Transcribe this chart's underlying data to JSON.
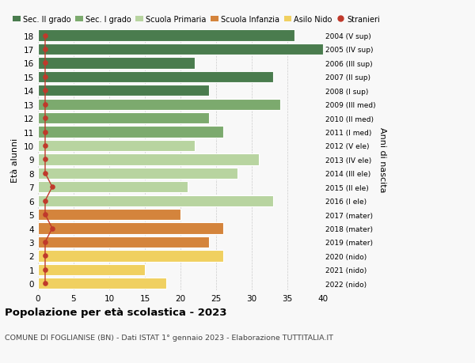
{
  "ages": [
    18,
    17,
    16,
    15,
    14,
    13,
    12,
    11,
    10,
    9,
    8,
    7,
    6,
    5,
    4,
    3,
    2,
    1,
    0
  ],
  "labels_right": [
    "2004 (V sup)",
    "2005 (IV sup)",
    "2006 (III sup)",
    "2007 (II sup)",
    "2008 (I sup)",
    "2009 (III med)",
    "2010 (II med)",
    "2011 (I med)",
    "2012 (V ele)",
    "2013 (IV ele)",
    "2014 (III ele)",
    "2015 (II ele)",
    "2016 (I ele)",
    "2017 (mater)",
    "2018 (mater)",
    "2019 (mater)",
    "2020 (nido)",
    "2021 (nido)",
    "2022 (nido)"
  ],
  "values": [
    36,
    40,
    22,
    33,
    24,
    34,
    24,
    26,
    22,
    31,
    28,
    21,
    33,
    20,
    26,
    24,
    26,
    15,
    18
  ],
  "stranieri": [
    1,
    1,
    1,
    1,
    1,
    1,
    1,
    1,
    1,
    1,
    1,
    2,
    1,
    1,
    2,
    1,
    1,
    1,
    1
  ],
  "bar_colors": [
    "#4a7c4e",
    "#4a7c4e",
    "#4a7c4e",
    "#4a7c4e",
    "#4a7c4e",
    "#7caa6e",
    "#7caa6e",
    "#7caa6e",
    "#b8d4a0",
    "#b8d4a0",
    "#b8d4a0",
    "#b8d4a0",
    "#b8d4a0",
    "#d4843c",
    "#d4843c",
    "#d4843c",
    "#f0d060",
    "#f0d060",
    "#f0d060"
  ],
  "legend_labels": [
    "Sec. II grado",
    "Sec. I grado",
    "Scuola Primaria",
    "Scuola Infanzia",
    "Asilo Nido",
    "Stranieri"
  ],
  "legend_colors": [
    "#4a7c4e",
    "#7caa6e",
    "#b8d4a0",
    "#d4843c",
    "#f0d060",
    "#c0392b"
  ],
  "stranieri_color": "#c0392b",
  "stranieri_line_color": "#c0392b",
  "ylabel_left": "Età alunni",
  "ylabel_right": "Anni di nascita",
  "title": "Popolazione per età scolastica - 2023",
  "subtitle": "COMUNE DI FOGLIANISE (BN) - Dati ISTAT 1° gennaio 2023 - Elaborazione TUTTITALIA.IT",
  "xlim": [
    0,
    40
  ],
  "xticks": [
    0,
    5,
    10,
    15,
    20,
    25,
    30,
    35,
    40
  ],
  "bg_color": "#f8f8f8",
  "grid_color": "#cccccc"
}
